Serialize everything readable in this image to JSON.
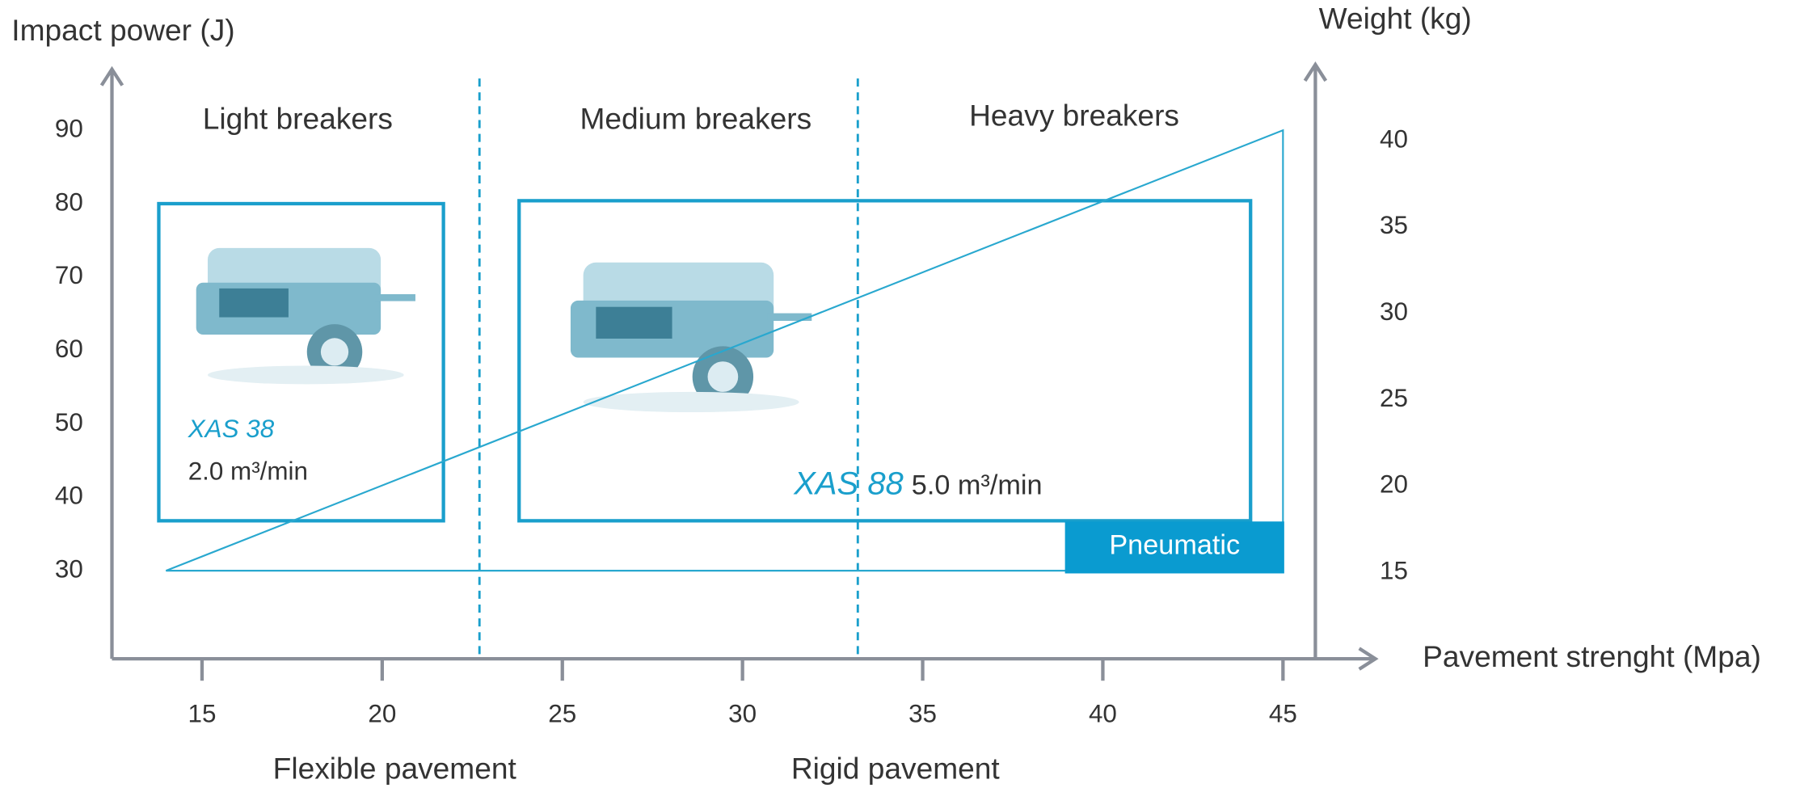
{
  "chart_data": {
    "type": "area",
    "y_axis_label": "Impact power (J)",
    "y2_axis_label": "Weight (kg)",
    "x_axis_label": "Pavement strenght (Mpa)",
    "xlim": [
      12.5,
      47.5
    ],
    "xticks": [
      15,
      20,
      25,
      30,
      35,
      40,
      45
    ],
    "ylim": [
      18,
      98
    ],
    "yticks": [
      30,
      40,
      50,
      60,
      70,
      80,
      90
    ],
    "y2lim": [
      10,
      44
    ],
    "y2ticks": [
      15,
      20,
      25,
      30,
      35,
      40
    ],
    "regions": [
      "Light breakers",
      "Medium breakers",
      "Heavy breakers"
    ],
    "dividers": [
      22.7,
      33.2
    ],
    "pavement_labels": [
      "Flexible pavement",
      "Rigid pavement"
    ],
    "boxes": [
      {
        "model": "XAS 38",
        "spec": "2.0 m³/min",
        "x": [
          13.8,
          21.7
        ],
        "y": [
          36.8,
          80
        ]
      },
      {
        "model": "XAS 88",
        "spec": "5.0 m³/min",
        "x": [
          23.8,
          44.1
        ],
        "y": [
          36.8,
          80.4
        ]
      }
    ],
    "series": [
      {
        "name": "Pneumatic",
        "color": "#29a8cf",
        "x": [
          14,
          45,
          45
        ],
        "values": [
          30,
          90,
          30
        ]
      }
    ]
  }
}
